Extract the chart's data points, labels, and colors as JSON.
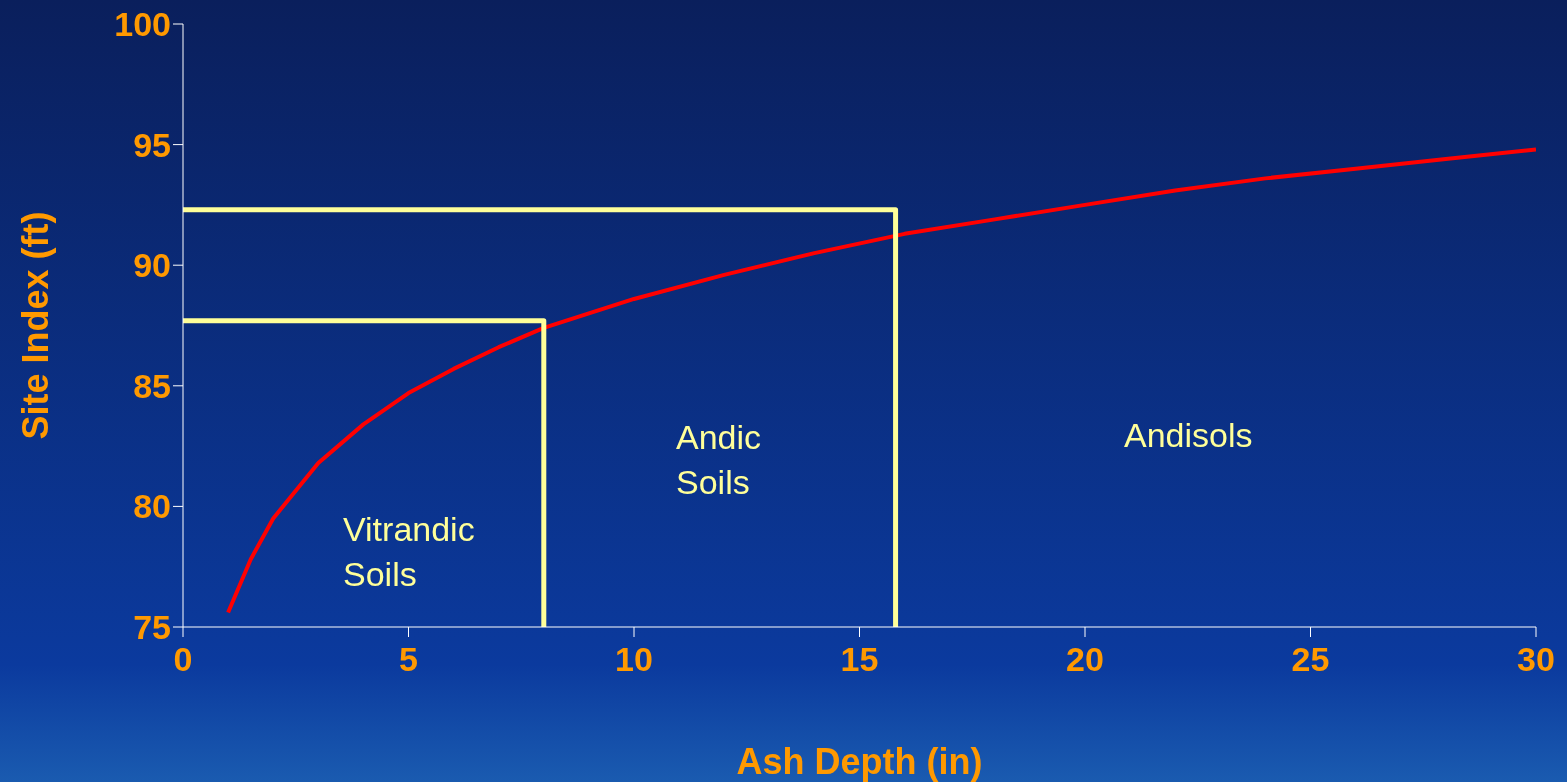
{
  "chart_data": {
    "type": "line",
    "xlabel": "Ash Depth (in)",
    "ylabel": "Site Index (ft)",
    "xlim": [
      0,
      30
    ],
    "xticks": [
      0,
      5,
      10,
      15,
      20,
      25,
      30
    ],
    "ylim": [
      75,
      100
    ],
    "yticks": [
      75,
      80,
      85,
      90,
      95,
      100
    ],
    "grid": false,
    "marker": "none",
    "series": [
      {
        "color": "#ff0000",
        "x": [
          1,
          1.5,
          2,
          3,
          4,
          5,
          6,
          7,
          8,
          10,
          12,
          14,
          16,
          18,
          20,
          22,
          24,
          26,
          28,
          30
        ],
        "values": [
          75.6,
          77.8,
          79.5,
          81.8,
          83.4,
          84.7,
          85.7,
          86.6,
          87.4,
          88.6,
          89.6,
          90.5,
          91.3,
          91.9,
          92.5,
          93.1,
          93.6,
          94.0,
          94.4,
          94.8
        ]
      },
      {
        "color": "#ffff99",
        "x": [
          0,
          15.8,
          15.8
        ],
        "values": [
          92.3,
          92.3,
          75
        ]
      },
      {
        "color": "#ffff99",
        "x": [
          0,
          8,
          8
        ],
        "values": [
          87.7,
          87.7,
          75
        ]
      }
    ],
    "annotations": [
      "Vitrandic Soils",
      "Andic Soils",
      "Andisols"
    ]
  }
}
